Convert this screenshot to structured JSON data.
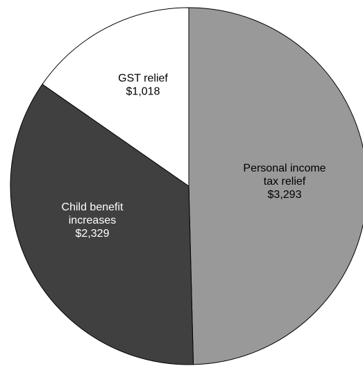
{
  "chart_data": {
    "type": "pie",
    "title": "",
    "slices": [
      {
        "label_lines": [
          "Personal income",
          "tax relief"
        ],
        "value_label": "$3,293",
        "value": 3293,
        "color": "#999999",
        "text_color": "#000000"
      },
      {
        "label_lines": [
          "Child benefit",
          "increases"
        ],
        "value_label": "$2,329",
        "value": 2329,
        "color": "#404040",
        "text_color": "#ffffff"
      },
      {
        "label_lines": [
          "GST relief"
        ],
        "value_label": "$1,018",
        "value": 1018,
        "color": "#ffffff",
        "text_color": "#000000"
      }
    ]
  }
}
